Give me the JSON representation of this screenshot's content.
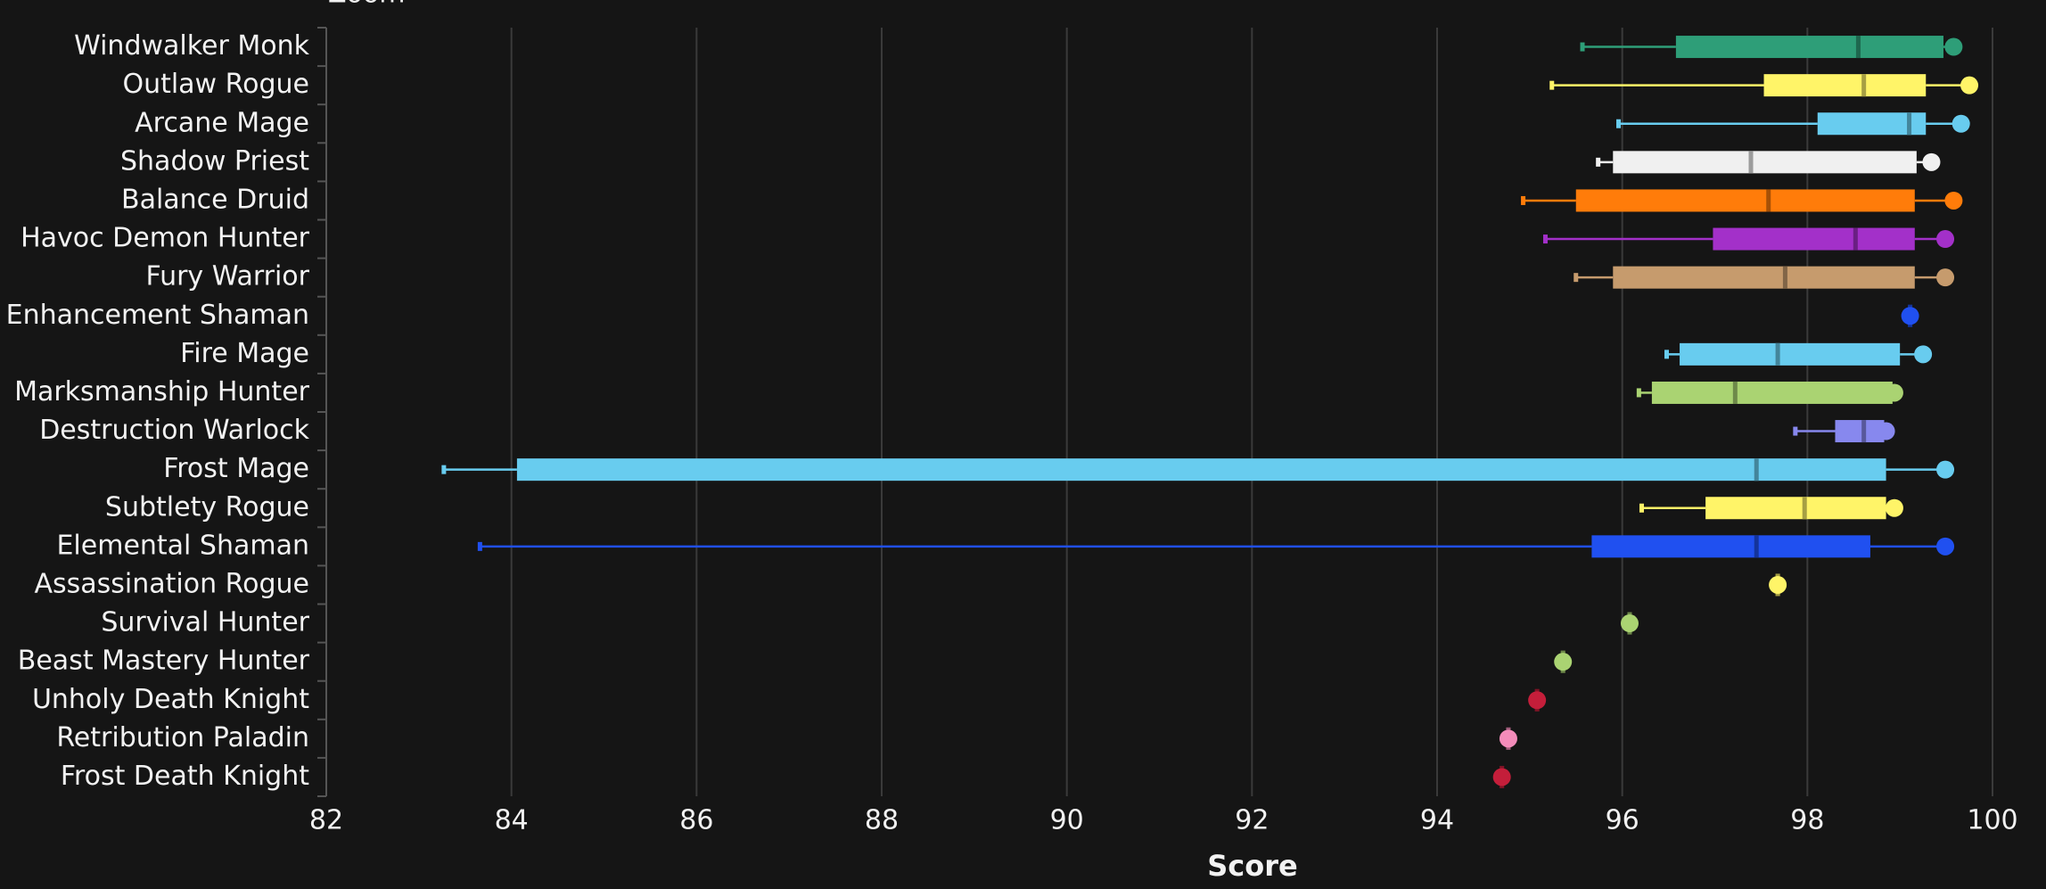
{
  "chart_data": {
    "type": "box",
    "zoom_label": "Zoom",
    "xlabel": "Score",
    "categories": [
      "Windwalker Monk",
      "Outlaw Rogue",
      "Arcane Mage",
      "Shadow Priest",
      "Balance Druid",
      "Havoc Demon Hunter",
      "Fury Warrior",
      "Enhancement Shaman",
      "Fire Mage",
      "Marksmanship Hunter",
      "Destruction Warlock",
      "Frost Mage",
      "Subtlety Rogue",
      "Elemental Shaman",
      "Assassination Rogue",
      "Survival Hunter",
      "Beast Mastery Hunter",
      "Unholy Death Knight",
      "Retribution Paladin",
      "Frost Death Knight"
    ],
    "colors": [
      "#2e9e78",
      "#fff468",
      "#68ccef",
      "#f0f0f0",
      "#ff7c0a",
      "#a330c9",
      "#c69b6d",
      "#2050f0",
      "#68ccef",
      "#aad372",
      "#8788ee",
      "#68ccef",
      "#fff468",
      "#2050f0",
      "#fff468",
      "#aad372",
      "#aad372",
      "#c41e3a",
      "#f48cba",
      "#c41e3a"
    ],
    "min": [
      95.57,
      95.24,
      95.96,
      95.74,
      94.93,
      95.17,
      95.5,
      99.11,
      96.48,
      96.18,
      97.87,
      83.27,
      96.21,
      83.66,
      97.68,
      96.08,
      95.36,
      95.08,
      94.77,
      94.7
    ],
    "q1": [
      96.58,
      97.53,
      98.11,
      95.9,
      95.5,
      96.98,
      95.9,
      99.11,
      96.62,
      96.32,
      98.3,
      84.06,
      96.9,
      95.67,
      97.68,
      96.08,
      95.36,
      95.08,
      94.77,
      94.7
    ],
    "median": [
      98.55,
      98.61,
      99.1,
      97.39,
      97.58,
      98.52,
      97.76,
      99.11,
      97.68,
      97.22,
      98.61,
      97.45,
      97.97,
      97.45,
      97.68,
      96.08,
      95.36,
      95.08,
      94.77,
      94.7
    ],
    "q3": [
      99.47,
      99.28,
      99.28,
      99.18,
      99.16,
      99.16,
      99.16,
      99.11,
      99.0,
      98.92,
      98.83,
      98.85,
      98.85,
      98.68,
      97.68,
      96.08,
      95.36,
      95.08,
      94.77,
      94.7
    ],
    "max": [
      99.58,
      99.75,
      99.66,
      99.34,
      99.58,
      99.49,
      99.49,
      99.11,
      99.25,
      98.94,
      98.85,
      99.49,
      98.94,
      99.49,
      97.68,
      96.08,
      95.36,
      95.08,
      94.77,
      94.7
    ],
    "xlim": [
      82,
      100
    ],
    "xticks": [
      82,
      84,
      86,
      88,
      90,
      92,
      94,
      96,
      98,
      100
    ],
    "grid": true
  }
}
